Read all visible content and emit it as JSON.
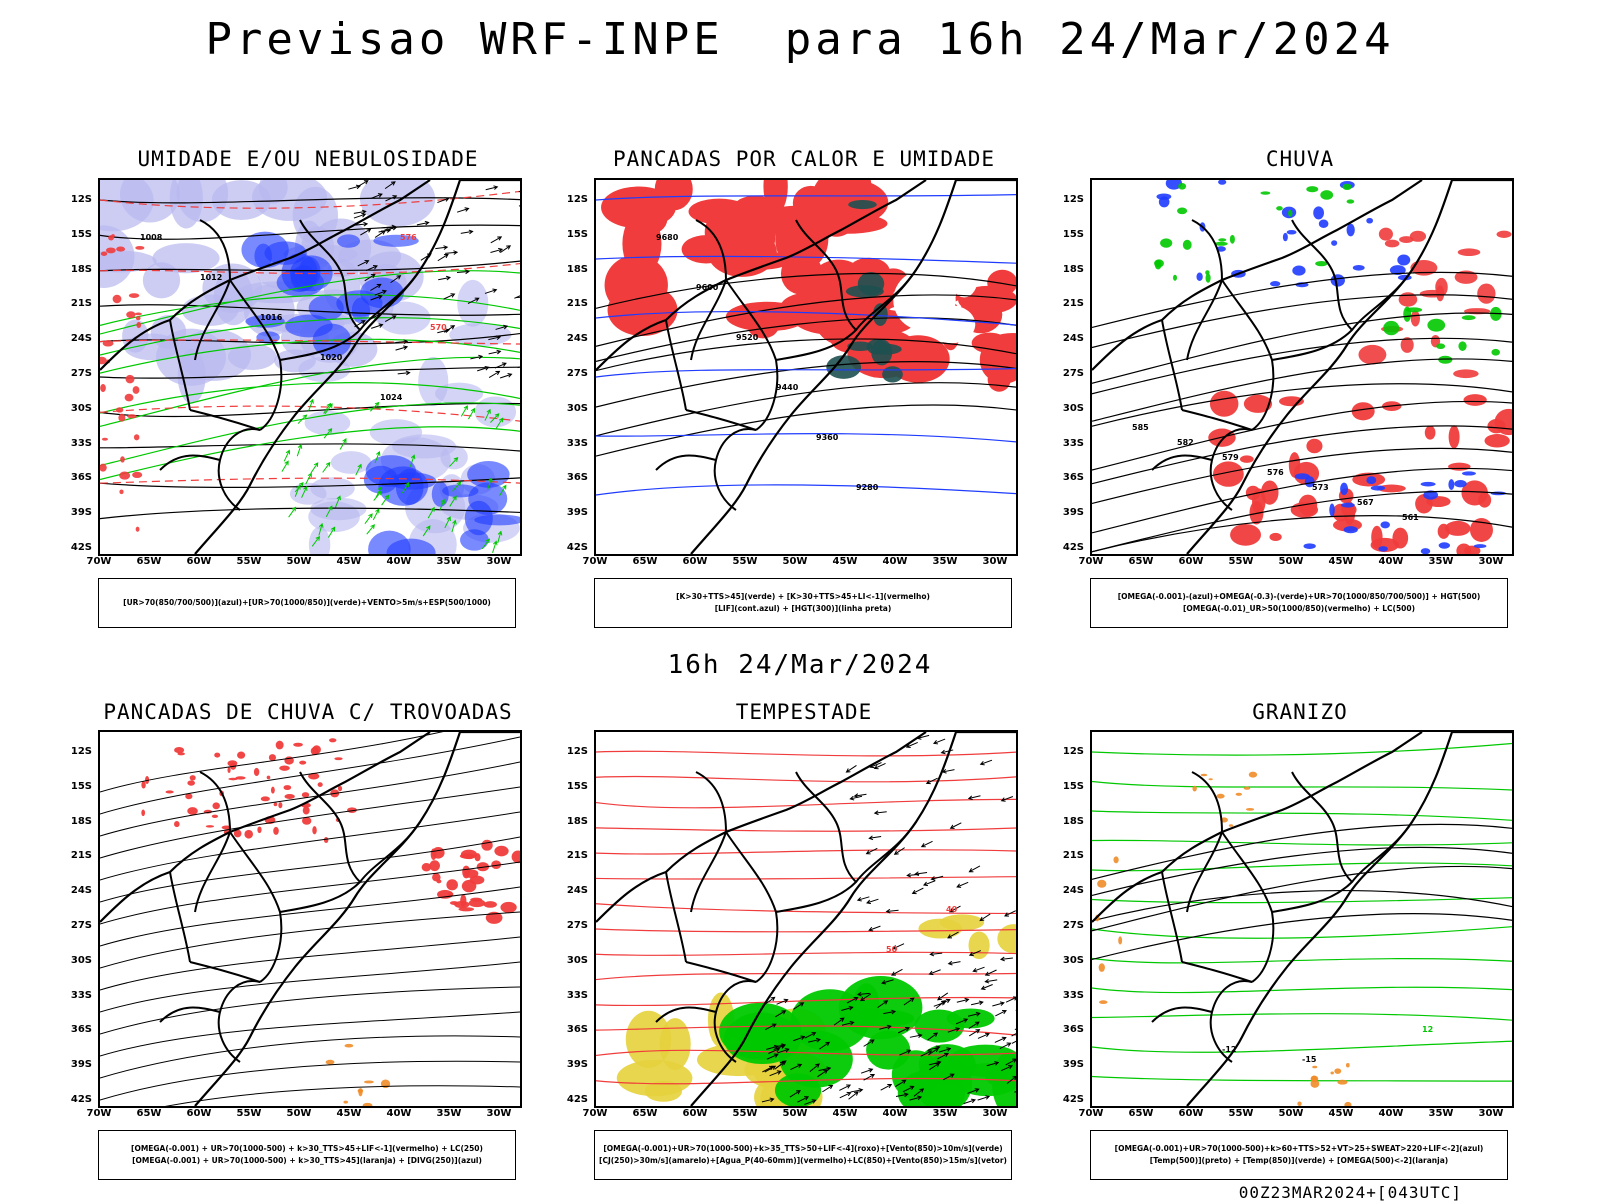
{
  "page": {
    "title": "Previsao WRF-INPE  para 16h 24/Mar/2024",
    "subtitle": "16h 24/Mar/2024",
    "footer": "00Z23MAR2024+[043UTC]"
  },
  "axes": {
    "lat_labels": [
      "12S",
      "15S",
      "18S",
      "21S",
      "24S",
      "27S",
      "30S",
      "33S",
      "36S",
      "39S",
      "42S"
    ],
    "lon_labels": [
      "70W",
      "65W",
      "60W",
      "55W",
      "50W",
      "45W",
      "40W",
      "35W",
      "30W"
    ]
  },
  "panels": [
    {
      "id": "umidade",
      "title": "UMIDADE E/OU NEBULOSIDADE",
      "legend": [
        "[UR>70(850/700/500)](azul)+[UR>70(1000/850)](verde)+VENTO>5m/s+ESP(500/1000)"
      ],
      "contour_labels": [
        "1008",
        "1012",
        "1016",
        "1020",
        "1024",
        "576",
        "570"
      ]
    },
    {
      "id": "pancadas-calor",
      "title": "PANCADAS POR CALOR E UMIDADE",
      "legend": [
        "[K>30+TTS>45](verde) + [K>30+TTS>45+LI<-1](vermelho)",
        "[LIF](cont.azul) + [HGT(300)](linha preta)"
      ],
      "contour_labels": [
        "9680",
        "9600",
        "9520",
        "9440",
        "9360",
        "9280"
      ]
    },
    {
      "id": "chuva",
      "title": "CHUVA",
      "legend": [
        "[OMEGA(-0.001)-(azul)+OMEGA(-0.3)-(verde)+UR>70(1000/850/700/500)] + HGT(500)",
        "[OMEGA(-0.01)_UR>50(1000/850)(vermelho) + LC(500)"
      ],
      "contour_labels": [
        "585",
        "582",
        "579",
        "576",
        "573",
        "567",
        "561"
      ]
    },
    {
      "id": "pancadas-trovoadas",
      "title": "PANCADAS DE CHUVA C/ TROVOADAS",
      "legend": [
        "[OMEGA(-0.001) + UR>70(1000-500) + k>30_TTS>45+LIF<-1](vermelho) + LC(250)",
        "[OMEGA(-0.001) + UR>70(1000-500) + k>30_TTS>45](laranja) + [DIVG(250)](azul)"
      ],
      "contour_labels": []
    },
    {
      "id": "tempestade",
      "title": "TEMPESTADE",
      "legend": [
        "[OMEGA(-0.001)+UR>70(1000-500)+k>35_TTS>50+LIF<-4](roxo)+[Vento(850)>10m/s](verde)",
        "[CJ(250)>30m/s](amarelo)+[Agua_P(40-60mm)](vermelho)+LC(850)+[Vento(850)>15m/s](vetor)"
      ],
      "contour_labels": [
        "40",
        "50"
      ]
    },
    {
      "id": "granizo",
      "title": "GRANIZO",
      "legend": [
        "[OMEGA(-0.001)+UR>70(1000-500)+k>60+TTS>52+VT>25+SWEAT>220+LIF<-2](azul)",
        "[Temp(500)](preto) + [Temp(850)](verde) + [OMEGA(500)<-2](laranja)"
      ],
      "contour_labels": [
        "-12",
        "-15",
        "12"
      ]
    }
  ],
  "colors": {
    "blue": "#1f3cff",
    "green": "#00c800",
    "red": "#f03c3c",
    "light_purple": "#b8b8f0",
    "orange": "#f08c28",
    "yellow": "#e6d23c",
    "dark_teal": "#1e5050"
  }
}
